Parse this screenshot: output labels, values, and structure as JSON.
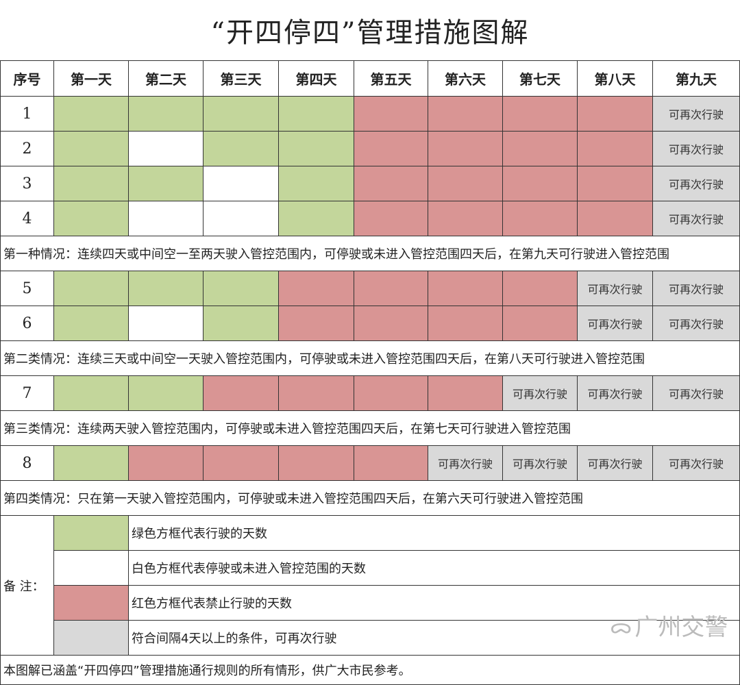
{
  "title": "“开四停四”管理措施图解",
  "headers": [
    "序号",
    "第一天",
    "第二天",
    "第三天",
    "第四天",
    "第五天",
    "第六天",
    "第七天",
    "第八天",
    "第九天"
  ],
  "gray_label": "可再次行驶",
  "colors": {
    "green": "#c3d69b",
    "red": "#d99594",
    "gray": "#d9d9d9",
    "white": "#ffffff"
  },
  "sections": [
    {
      "rows": [
        {
          "no": "1",
          "cells": [
            "g",
            "g",
            "g",
            "g",
            "r",
            "r",
            "r",
            "r",
            "x"
          ]
        },
        {
          "no": "2",
          "cells": [
            "g",
            "w",
            "g",
            "g",
            "r",
            "r",
            "r",
            "r",
            "x"
          ]
        },
        {
          "no": "3",
          "cells": [
            "g",
            "g",
            "w",
            "g",
            "r",
            "r",
            "r",
            "r",
            "x"
          ]
        },
        {
          "no": "4",
          "cells": [
            "g",
            "w",
            "w",
            "g",
            "r",
            "r",
            "r",
            "r",
            "x"
          ]
        }
      ],
      "note": "第一种情况：连续四天或中间空一至两天驶入管控范围内，可停驶或未进入管控范围四天后，在第九天可行驶进入管控范围"
    },
    {
      "rows": [
        {
          "no": "5",
          "cells": [
            "g",
            "g",
            "g",
            "r",
            "r",
            "r",
            "r",
            "x",
            "x"
          ]
        },
        {
          "no": "6",
          "cells": [
            "g",
            "w",
            "g",
            "r",
            "r",
            "r",
            "r",
            "x",
            "x"
          ]
        }
      ],
      "note": "第二类情况：连续三天或中间空一天驶入管控范围内，可停驶或未进入管控范围四天后，在第八天可行驶进入管控范围"
    },
    {
      "rows": [
        {
          "no": "7",
          "cells": [
            "g",
            "g",
            "r",
            "r",
            "r",
            "r",
            "x",
            "x",
            "x"
          ]
        }
      ],
      "note": "第三类情况：连续两天驶入管控范围内，可停驶或未进入管控范围四天后，在第七天可行驶进入管控范围"
    },
    {
      "rows": [
        {
          "no": "8",
          "cells": [
            "g",
            "r",
            "r",
            "r",
            "r",
            "x",
            "x",
            "x",
            "x"
          ]
        }
      ],
      "note": "第四类情况：只在第一天驶入管控范围内，可停驶或未进入管控范围四天后，在第六天可行驶进入管控范围"
    }
  ],
  "legend": {
    "label": "备  注：",
    "items": [
      {
        "color": "g",
        "text": "绿色方框代表行驶的天数"
      },
      {
        "color": "w",
        "text": "白色方框代表停驶或未进入管控范围的天数"
      },
      {
        "color": "r",
        "text": "红色方框代表禁止行驶的天数"
      },
      {
        "color": "x",
        "text": "符合间隔4天以上的条件，可再次行驶"
      }
    ]
  },
  "footer": "本图解已涵盖“开四停四”管理措施通行规则的所有情形，供广大市民参考。",
  "watermark": "广州交警"
}
